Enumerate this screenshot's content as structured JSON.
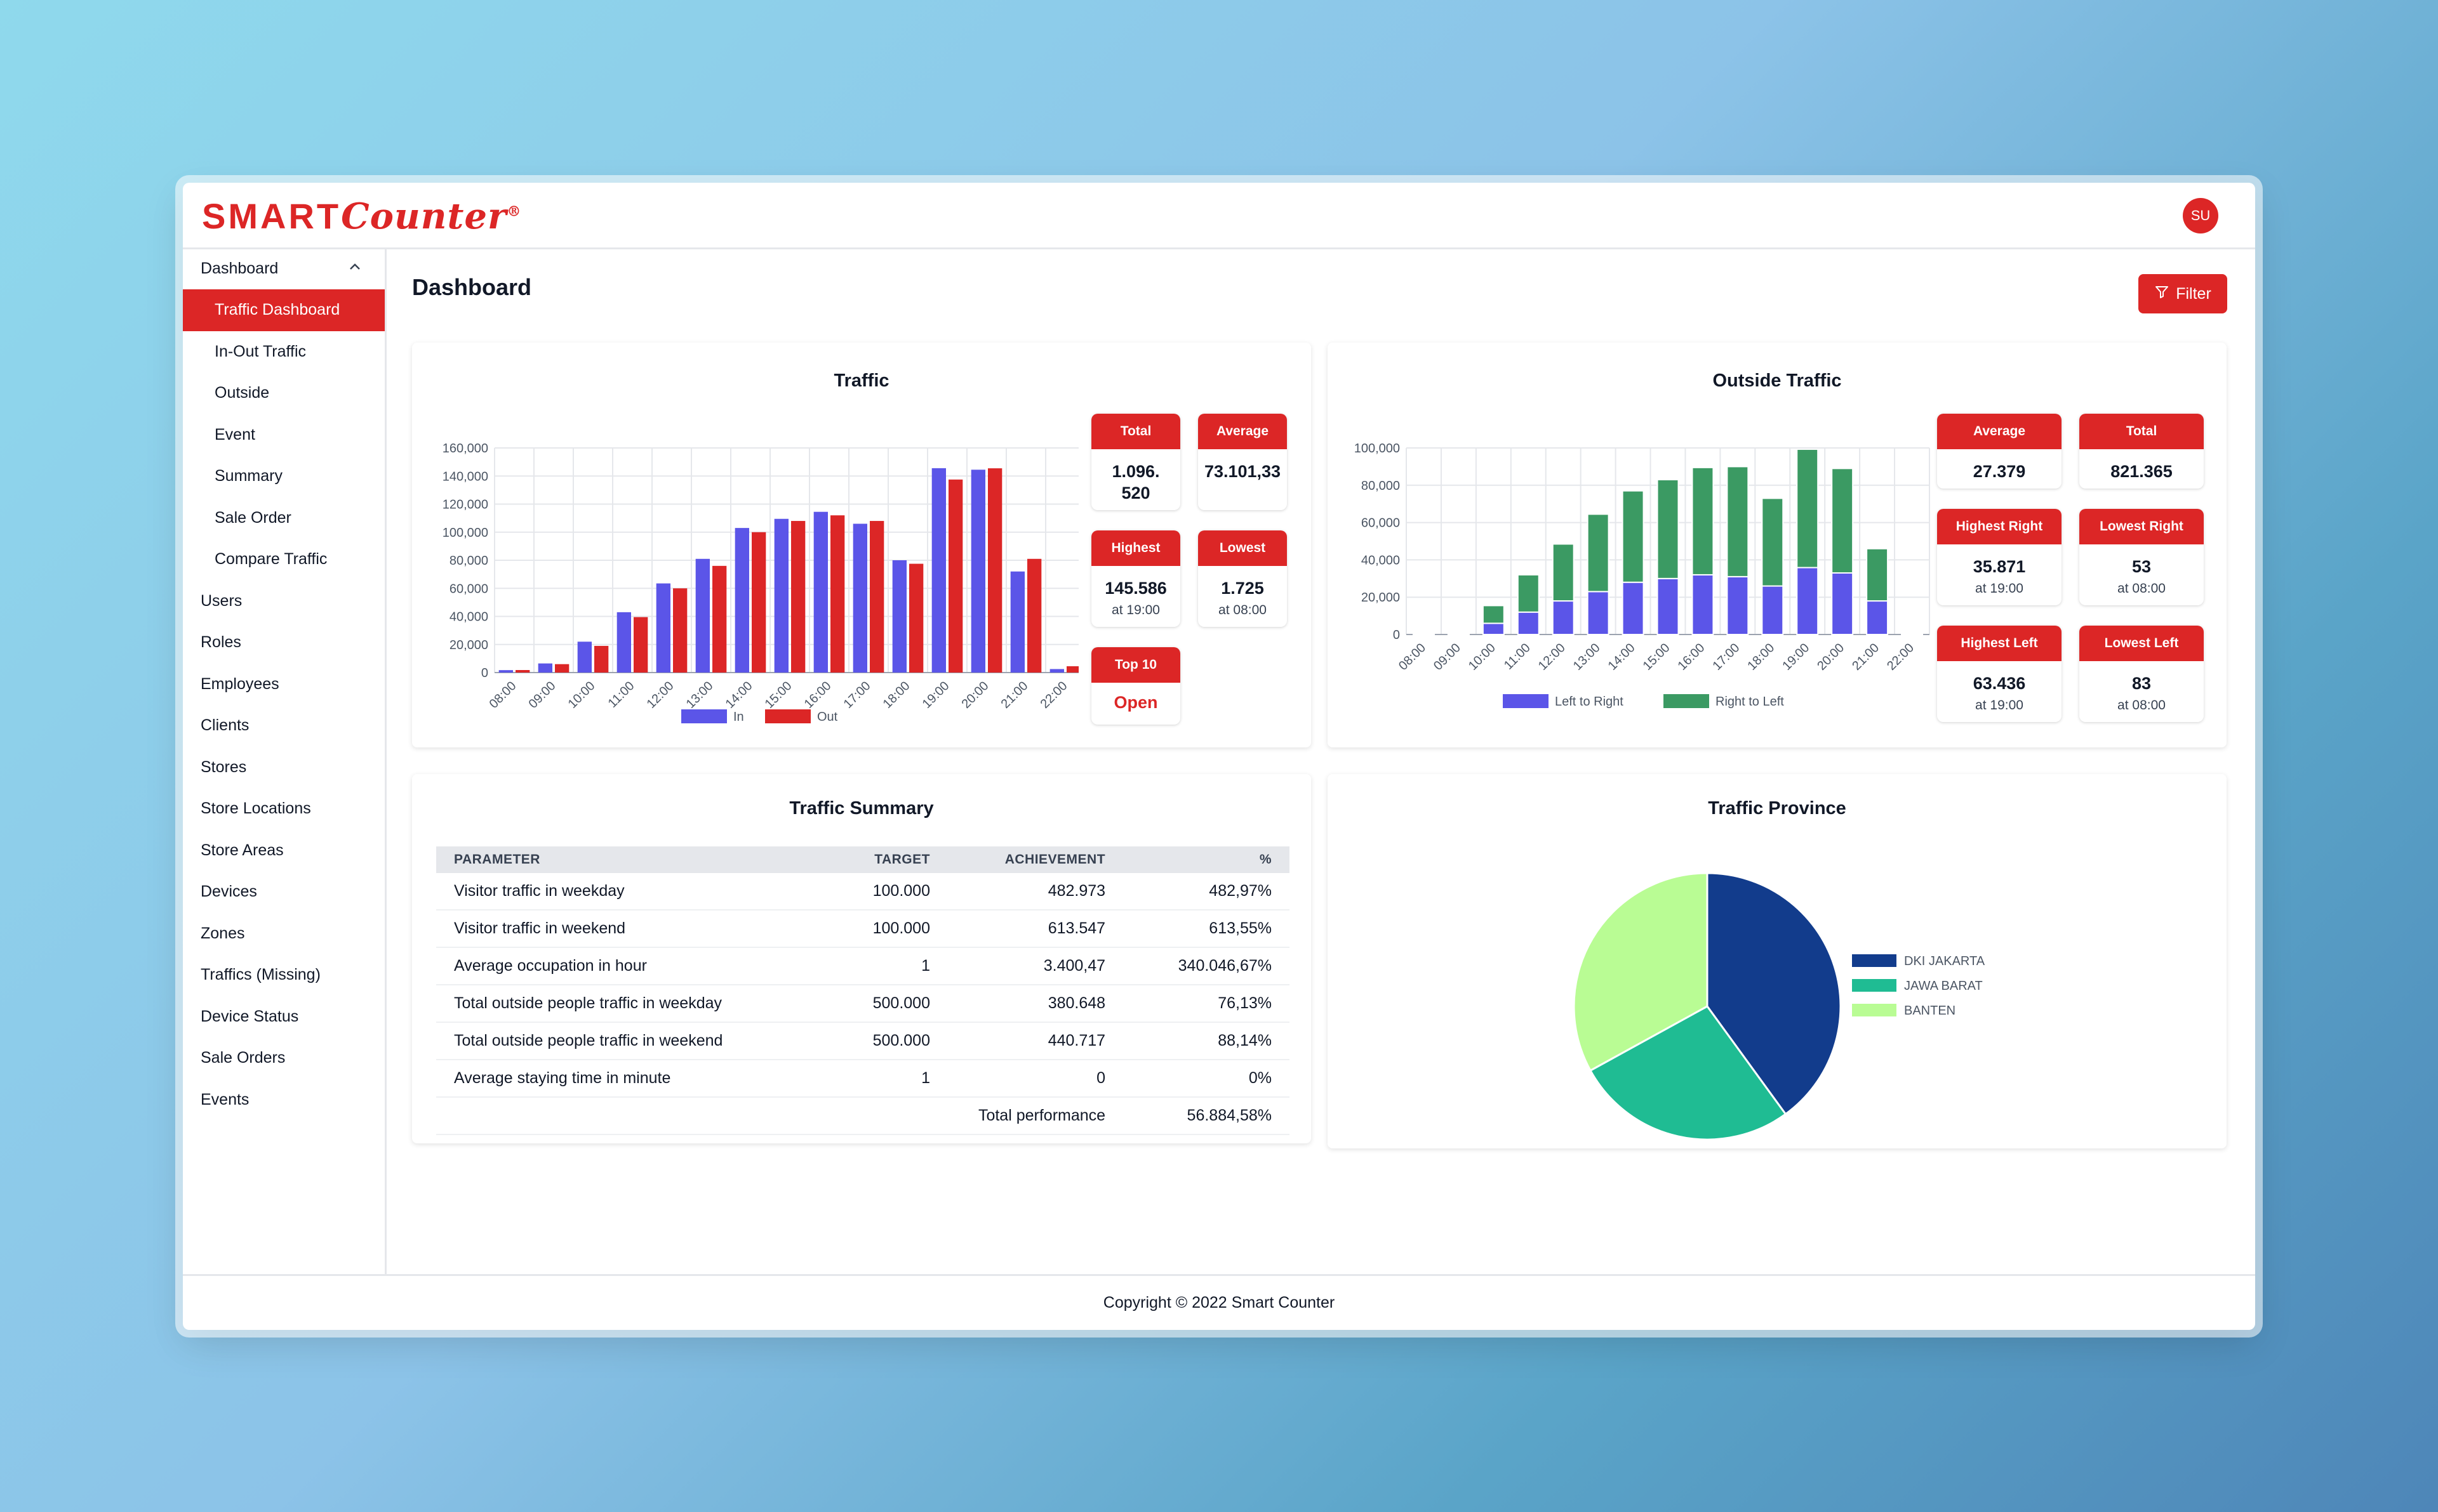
{
  "app": {
    "logo_sm": "SMART",
    "logo_counter": "Counter",
    "logo_reg": "®",
    "avatar_initials": "SU",
    "brand_color": "#dc2626"
  },
  "sidebar": {
    "group_label": "Dashboard",
    "group_icon": "chevron-up-icon",
    "sub_items": [
      {
        "label": "Traffic Dashboard",
        "active": true
      },
      {
        "label": "In-Out Traffic"
      },
      {
        "label": "Outside"
      },
      {
        "label": "Event"
      },
      {
        "label": "Summary"
      },
      {
        "label": "Sale Order"
      },
      {
        "label": "Compare Traffic"
      }
    ],
    "items": [
      "Users",
      "Roles",
      "Employees",
      "Clients",
      "Stores",
      "Store Locations",
      "Store Areas",
      "Devices",
      "Zones",
      "Traffics (Missing)",
      "Device Status",
      "Sale Orders",
      "Events"
    ]
  },
  "header": {
    "title": "Dashboard",
    "filter_label": "Filter",
    "filter_icon": "filter-icon"
  },
  "traffic": {
    "title": "Traffic",
    "stats": {
      "total_label": "Total",
      "total_value": "1.096.520",
      "average_label": "Average",
      "average_value": "73.101,33",
      "highest_label": "Highest",
      "highest_value": "145.586",
      "highest_at": "at 19:00",
      "lowest_label": "Lowest",
      "lowest_value": "1.725",
      "lowest_at": "at 08:00",
      "top10_label": "Top 10",
      "top10_action": "Open"
    }
  },
  "outside": {
    "title": "Outside Traffic",
    "stats": {
      "average_label": "Average",
      "average_value": "27.379",
      "total_label": "Total",
      "total_value": "821.365",
      "highest_right_label": "Highest Right",
      "highest_right_value": "35.871",
      "highest_right_at": "at 19:00",
      "lowest_right_label": "Lowest Right",
      "lowest_right_value": "53",
      "lowest_right_at": "at 08:00",
      "highest_left_label": "Highest Left",
      "highest_left_value": "63.436",
      "highest_left_at": "at 19:00",
      "lowest_left_label": "Lowest Left",
      "lowest_left_value": "83",
      "lowest_left_at": "at 08:00"
    }
  },
  "summary": {
    "title": "Traffic Summary",
    "columns": [
      "PARAMETER",
      "TARGET",
      "ACHIEVEMENT",
      "%"
    ],
    "rows": [
      [
        "Visitor traffic in weekday",
        "100.000",
        "482.973",
        "482,97%"
      ],
      [
        "Visitor traffic in weekend",
        "100.000",
        "613.547",
        "613,55%"
      ],
      [
        "Average occupation in hour",
        "1",
        "3.400,47",
        "340.046,67%"
      ],
      [
        "Total outside people traffic in weekday",
        "500.000",
        "380.648",
        "76,13%"
      ],
      [
        "Total outside people traffic in weekend",
        "500.000",
        "440.717",
        "88,14%"
      ],
      [
        "Average staying time in minute",
        "1",
        "0",
        "0%"
      ]
    ],
    "total_label": "Total performance",
    "total_value": "56.884,58%"
  },
  "province": {
    "title": "Traffic Province"
  },
  "footer": {
    "text": "Copyright © 2022 Smart Counter"
  },
  "chart_data": [
    {
      "type": "bar",
      "categories": [
        "08:00",
        "09:00",
        "10:00",
        "11:00",
        "12:00",
        "13:00",
        "14:00",
        "15:00",
        "16:00",
        "17:00",
        "18:00",
        "19:00",
        "20:00",
        "21:00",
        "22:00"
      ],
      "series": [
        {
          "name": "In",
          "color": "#5b55e8",
          "values": [
            1725,
            6500,
            22000,
            43000,
            63500,
            81000,
            103000,
            109500,
            114500,
            106000,
            80000,
            145586,
            144500,
            72000,
            2500
          ]
        },
        {
          "name": "Out",
          "color": "#dc2626",
          "values": [
            1800,
            6000,
            19000,
            39500,
            60000,
            76000,
            100000,
            108000,
            112000,
            108000,
            77500,
            137500,
            145500,
            81000,
            4500
          ]
        }
      ],
      "ylim": [
        0,
        160000
      ],
      "yticks": [
        "0",
        "20,000",
        "40,000",
        "60,000",
        "80,000",
        "100,000",
        "120,000",
        "140,000",
        "160,000"
      ],
      "grid": true,
      "legend": "bottom"
    },
    {
      "type": "bar",
      "stacked": true,
      "categories": [
        "08:00",
        "09:00",
        "10:00",
        "11:00",
        "12:00",
        "13:00",
        "14:00",
        "15:00",
        "16:00",
        "17:00",
        "18:00",
        "19:00",
        "20:00",
        "21:00",
        "22:00"
      ],
      "series": [
        {
          "name": "Left to Right",
          "color": "#5b55e8",
          "values": [
            53,
            200,
            6000,
            12000,
            18000,
            23000,
            28000,
            30000,
            32000,
            31000,
            26000,
            35871,
            33000,
            18000,
            300
          ]
        },
        {
          "name": "Right to Left",
          "color": "#3b9a63",
          "values": [
            83,
            300,
            9500,
            20000,
            30500,
            41500,
            49000,
            53000,
            57500,
            59000,
            47000,
            63436,
            56000,
            28000,
            200
          ]
        }
      ],
      "ylim": [
        0,
        100000
      ],
      "yticks": [
        "0",
        "20,000",
        "40,000",
        "60,000",
        "80,000",
        "100,000"
      ],
      "grid": true,
      "legend": "bottom"
    },
    {
      "type": "pie",
      "categories": [
        "DKI JAKARTA",
        "JAWA BARAT",
        "BANTEN"
      ],
      "values": [
        40,
        27,
        33
      ],
      "colors": [
        "#123c8c",
        "#1fbc93",
        "#b9fc94"
      ],
      "legend": "right"
    }
  ]
}
